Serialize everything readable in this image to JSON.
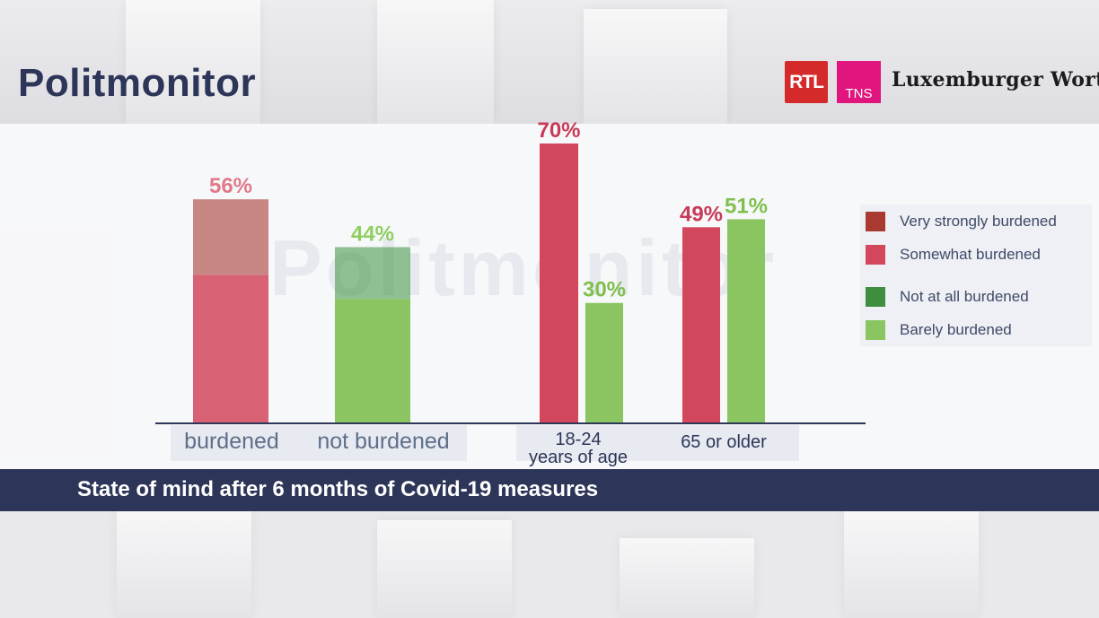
{
  "header": {
    "title": "Politmonitor",
    "logos": {
      "rtl": "RTL",
      "tns": "TNS",
      "lw": "Luxemburger Wort"
    }
  },
  "watermark": "Politmonitor",
  "colors": {
    "very_strong": "#a83a32",
    "somewhat": "#d2475c",
    "not_at_all": "#3d8f3f",
    "barely": "#8bc561",
    "label_red": "#c83a57",
    "label_green": "#7fbf4d",
    "label_pink": "#e0798a",
    "title": "#2d3558"
  },
  "legend": [
    {
      "label": "Very strongly burdened",
      "color": "#a83a32"
    },
    {
      "label": "Somewhat burdened",
      "color": "#d2475c"
    },
    {
      "label": "Not at all burdened",
      "color": "#3d8f3f"
    },
    {
      "label": "Barely burdened",
      "color": "#8bc561"
    }
  ],
  "subtitle": "State of mind after 6 months of Covid-19 measures",
  "chart_data": {
    "type": "bar",
    "ylim": [
      0,
      80
    ],
    "groups": [
      {
        "category": "burdened",
        "bars": [
          {
            "value": 56,
            "label": "56%",
            "segments": [
              {
                "value": 37,
                "color": "#d2475c",
                "opacity": 0.85
              },
              {
                "value": 19,
                "color": "#a83a32",
                "opacity": 0.6
              }
            ],
            "labelColor": "#e0798a"
          }
        ]
      },
      {
        "category": "not burdened",
        "bars": [
          {
            "value": 44,
            "label": "44%",
            "segments": [
              {
                "value": 31,
                "color": "#8bc561",
                "opacity": 1
              },
              {
                "value": 13,
                "color": "#3d8f3f",
                "opacity": 0.55
              }
            ],
            "labelColor": "#8fcf62"
          }
        ]
      },
      {
        "category": "18-24\nyears of age",
        "bars": [
          {
            "value": 70,
            "label": "70%",
            "segments": [
              {
                "value": 70,
                "color": "#d2475c",
                "opacity": 1
              }
            ],
            "labelColor": "#c83a57"
          },
          {
            "value": 30,
            "label": "30%",
            "segments": [
              {
                "value": 30,
                "color": "#8bc561",
                "opacity": 1
              }
            ],
            "labelColor": "#7fbf4d"
          }
        ]
      },
      {
        "category": "65 or older",
        "bars": [
          {
            "value": 49,
            "label": "49%",
            "segments": [
              {
                "value": 49,
                "color": "#d2475c",
                "opacity": 1
              }
            ],
            "labelColor": "#c83a57"
          },
          {
            "value": 51,
            "label": "51%",
            "segments": [
              {
                "value": 51,
                "color": "#8bc561",
                "opacity": 1
              }
            ],
            "labelColor": "#7fbf4d"
          }
        ]
      }
    ]
  }
}
